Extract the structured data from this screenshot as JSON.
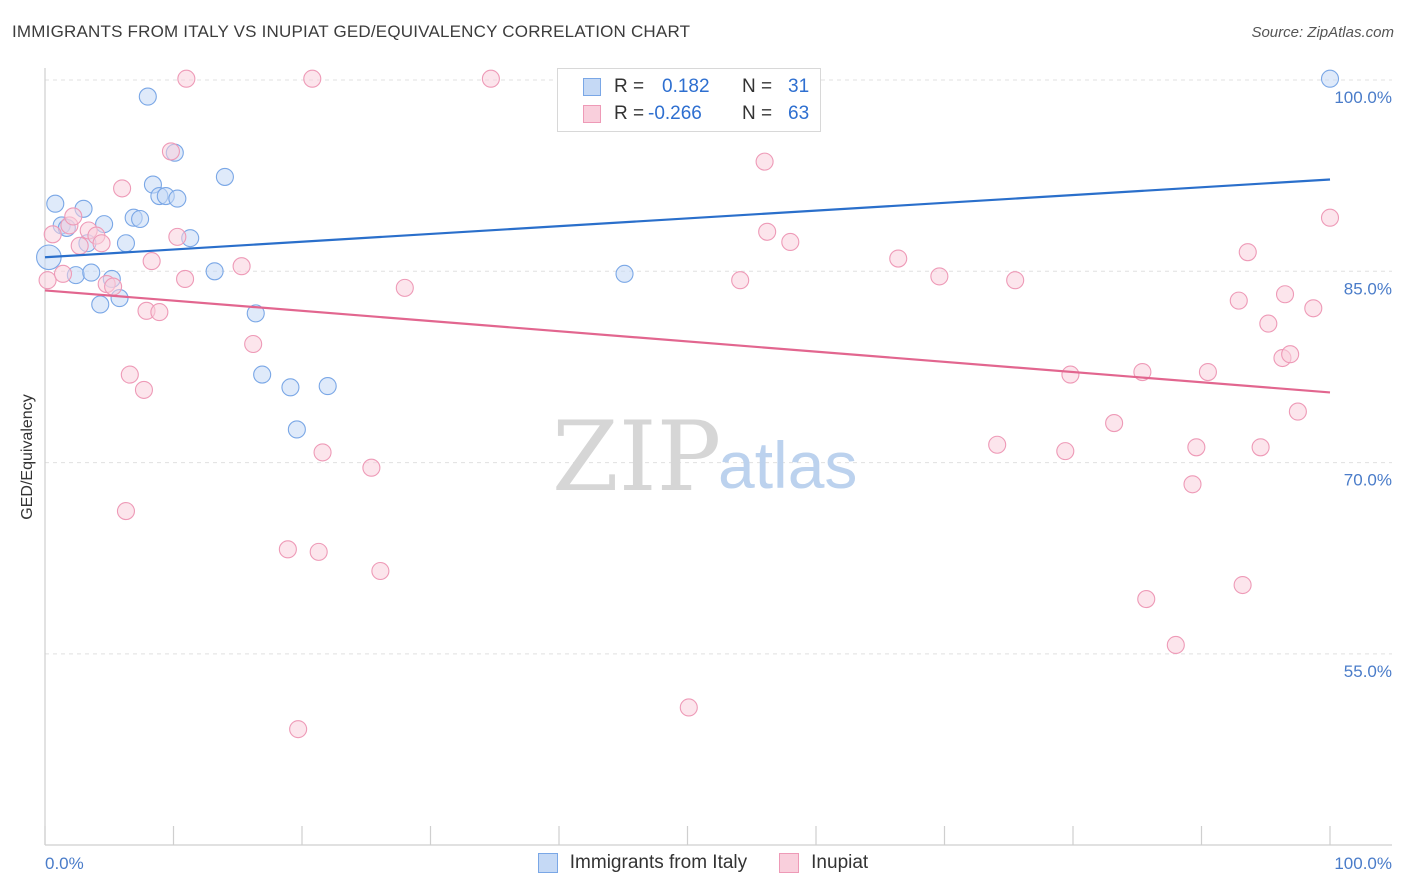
{
  "header": {
    "title": "IMMIGRANTS FROM ITALY VS INUPIAT GED/EQUIVALENCY CORRELATION CHART",
    "source": "Source: ZipAtlas.com"
  },
  "stats": [
    {
      "r_label": "R =",
      "r_value": "0.182",
      "n_label": "N =",
      "n_value": "31",
      "color": "#7aa7e6",
      "fill": "#c5d9f5"
    },
    {
      "r_label": "R =",
      "r_value": "-0.266",
      "n_label": "N =",
      "n_value": "63",
      "color": "#ee9ab7",
      "fill": "#f9cfdc"
    }
  ],
  "legend": [
    {
      "label": "Immigrants from Italy",
      "color": "#7aa7e6",
      "fill": "#c5d9f5"
    },
    {
      "label": "Inupiat",
      "color": "#ee9ab7",
      "fill": "#f9cfdc"
    }
  ],
  "watermark": {
    "zip": "ZIP",
    "atlas": "atlas"
  },
  "chart_data": {
    "type": "scatter",
    "title": "IMMIGRANTS FROM ITALY VS INUPIAT GED/EQUIVALENCY CORRELATION CHART",
    "xlabel": "",
    "ylabel": "GED/Equivalency",
    "xlim": [
      0,
      100
    ],
    "ylim": [
      38.5,
      101.5
    ],
    "x_tick_labels": [
      {
        "value": 0,
        "label": "0.0%"
      },
      {
        "value": 100,
        "label": "100.0%"
      }
    ],
    "y_tick_labels": [
      {
        "value": 100,
        "label": "100.0%"
      },
      {
        "value": 85,
        "label": "85.0%"
      },
      {
        "value": 70,
        "label": "70.0%"
      },
      {
        "value": 55,
        "label": "55.0%"
      }
    ],
    "grid": true,
    "legend_position": "bottom-center",
    "series": [
      {
        "name": "Immigrants from Italy",
        "color": "#7aa7e6",
        "fill": "#c5d9f5",
        "trend": {
          "x": [
            0,
            100
          ],
          "y": [
            86.1,
            92.2
          ]
        },
        "points": [
          {
            "x": 0.3,
            "y": 86.1,
            "s": 3
          },
          {
            "x": 0.8,
            "y": 90.3
          },
          {
            "x": 1.3,
            "y": 88.6
          },
          {
            "x": 1.7,
            "y": 88.4
          },
          {
            "x": 2.4,
            "y": 84.7
          },
          {
            "x": 3.0,
            "y": 89.9
          },
          {
            "x": 3.3,
            "y": 87.2
          },
          {
            "x": 3.6,
            "y": 84.9
          },
          {
            "x": 4.3,
            "y": 82.4
          },
          {
            "x": 4.6,
            "y": 88.7
          },
          {
            "x": 5.2,
            "y": 84.4
          },
          {
            "x": 5.8,
            "y": 82.9
          },
          {
            "x": 6.3,
            "y": 87.2
          },
          {
            "x": 6.9,
            "y": 89.2
          },
          {
            "x": 7.4,
            "y": 89.1
          },
          {
            "x": 8.0,
            "y": 98.7
          },
          {
            "x": 8.4,
            "y": 91.8
          },
          {
            "x": 8.9,
            "y": 90.9
          },
          {
            "x": 9.4,
            "y": 90.9
          },
          {
            "x": 10.1,
            "y": 94.3
          },
          {
            "x": 10.3,
            "y": 90.7
          },
          {
            "x": 11.3,
            "y": 87.6
          },
          {
            "x": 13.2,
            "y": 85.0
          },
          {
            "x": 14.0,
            "y": 92.4
          },
          {
            "x": 16.4,
            "y": 81.7
          },
          {
            "x": 16.9,
            "y": 76.9
          },
          {
            "x": 19.1,
            "y": 75.9
          },
          {
            "x": 19.6,
            "y": 72.6
          },
          {
            "x": 22.0,
            "y": 76.0
          },
          {
            "x": 45.1,
            "y": 84.8
          },
          {
            "x": 100.0,
            "y": 100.1
          }
        ]
      },
      {
        "name": "Inupiat",
        "color": "#ee9ab7",
        "fill": "#f9cfdc",
        "trend": {
          "x": [
            0,
            100
          ],
          "y": [
            83.5,
            75.5
          ]
        },
        "points": [
          {
            "x": 0.2,
            "y": 84.3
          },
          {
            "x": 0.6,
            "y": 87.9
          },
          {
            "x": 1.4,
            "y": 84.8
          },
          {
            "x": 1.9,
            "y": 88.6
          },
          {
            "x": 2.2,
            "y": 89.3
          },
          {
            "x": 2.7,
            "y": 87.0
          },
          {
            "x": 3.4,
            "y": 88.2
          },
          {
            "x": 4.0,
            "y": 87.8
          },
          {
            "x": 4.4,
            "y": 87.2
          },
          {
            "x": 4.8,
            "y": 84.0
          },
          {
            "x": 5.3,
            "y": 83.8
          },
          {
            "x": 6.0,
            "y": 91.5
          },
          {
            "x": 6.3,
            "y": 66.2
          },
          {
            "x": 6.6,
            "y": 76.9
          },
          {
            "x": 7.7,
            "y": 75.7
          },
          {
            "x": 7.9,
            "y": 81.9
          },
          {
            "x": 8.3,
            "y": 85.8
          },
          {
            "x": 8.9,
            "y": 81.8
          },
          {
            "x": 9.8,
            "y": 94.4
          },
          {
            "x": 10.3,
            "y": 87.7
          },
          {
            "x": 10.9,
            "y": 84.4
          },
          {
            "x": 11.0,
            "y": 100.1
          },
          {
            "x": 15.3,
            "y": 85.4
          },
          {
            "x": 16.2,
            "y": 79.3
          },
          {
            "x": 18.9,
            "y": 63.2
          },
          {
            "x": 19.7,
            "y": 49.1
          },
          {
            "x": 20.8,
            "y": 100.1
          },
          {
            "x": 21.3,
            "y": 63.0
          },
          {
            "x": 21.6,
            "y": 70.8
          },
          {
            "x": 25.4,
            "y": 69.6
          },
          {
            "x": 26.1,
            "y": 61.5
          },
          {
            "x": 28.0,
            "y": 83.7
          },
          {
            "x": 34.7,
            "y": 100.1
          },
          {
            "x": 47.2,
            "y": 100.1
          },
          {
            "x": 50.1,
            "y": 50.8
          },
          {
            "x": 54.1,
            "y": 84.3
          },
          {
            "x": 56.0,
            "y": 93.6
          },
          {
            "x": 56.2,
            "y": 88.1
          },
          {
            "x": 58.0,
            "y": 87.3
          },
          {
            "x": 66.4,
            "y": 86.0
          },
          {
            "x": 69.6,
            "y": 84.6
          },
          {
            "x": 74.1,
            "y": 71.4
          },
          {
            "x": 75.5,
            "y": 84.3
          },
          {
            "x": 79.4,
            "y": 70.9
          },
          {
            "x": 79.8,
            "y": 76.9
          },
          {
            "x": 83.2,
            "y": 73.1
          },
          {
            "x": 85.4,
            "y": 77.1
          },
          {
            "x": 85.7,
            "y": 59.3
          },
          {
            "x": 88.0,
            "y": 55.7
          },
          {
            "x": 89.3,
            "y": 68.3
          },
          {
            "x": 89.6,
            "y": 71.2
          },
          {
            "x": 90.5,
            "y": 77.1
          },
          {
            "x": 92.9,
            "y": 82.7
          },
          {
            "x": 93.2,
            "y": 60.4
          },
          {
            "x": 93.6,
            "y": 86.5
          },
          {
            "x": 94.6,
            "y": 71.2
          },
          {
            "x": 95.2,
            "y": 80.9
          },
          {
            "x": 96.3,
            "y": 78.2
          },
          {
            "x": 96.5,
            "y": 83.2
          },
          {
            "x": 96.9,
            "y": 78.5
          },
          {
            "x": 97.5,
            "y": 74.0
          },
          {
            "x": 98.7,
            "y": 82.1
          },
          {
            "x": 100.0,
            "y": 89.2
          }
        ]
      }
    ]
  }
}
